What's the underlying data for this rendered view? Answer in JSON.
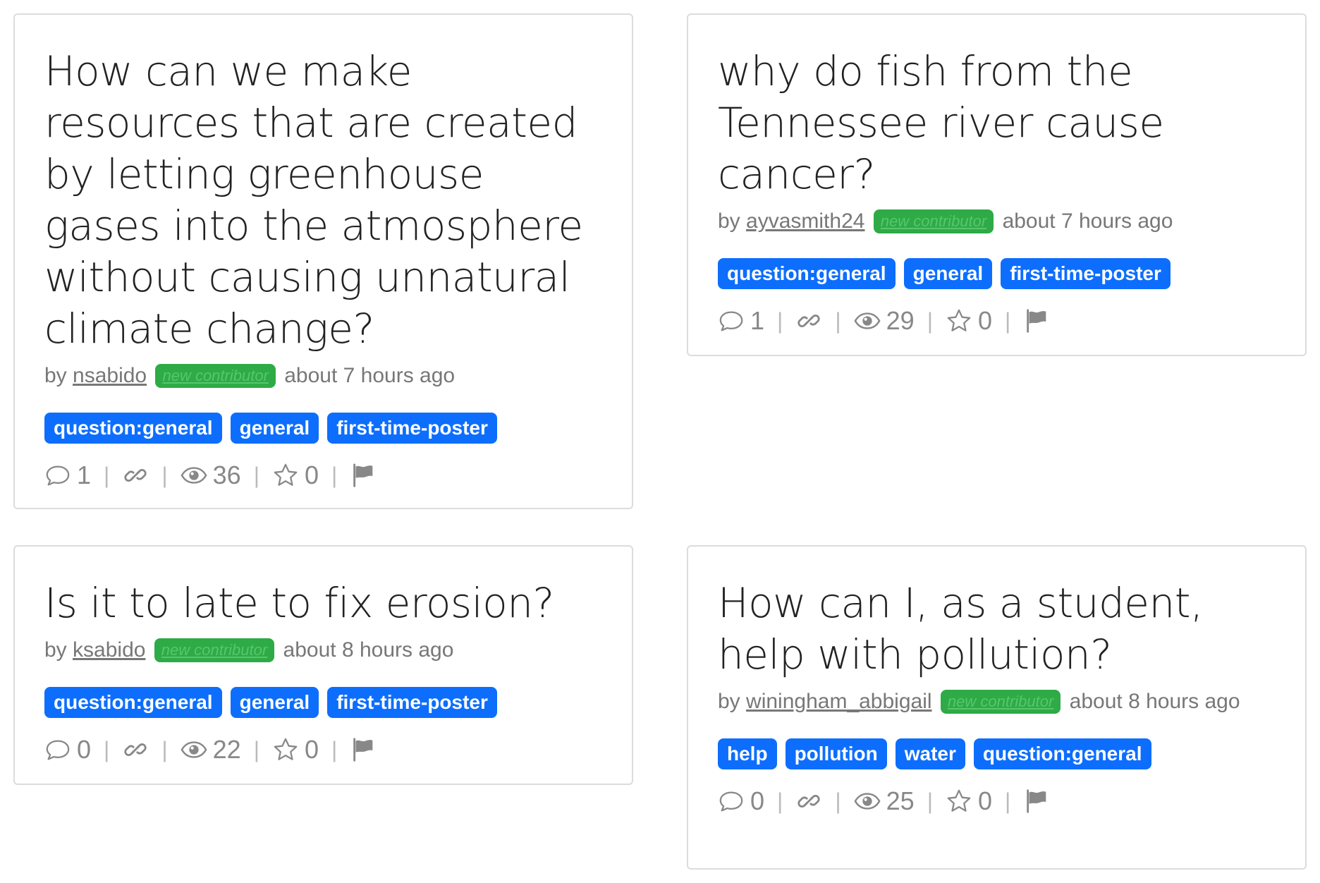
{
  "questions": [
    {
      "title": "How can we make resources that are created by letting greenhouse gases into the atmosphere without causing unnatural climate change?",
      "by": "by",
      "author": "nsabido",
      "badge": "new contributor",
      "time": "about 7 hours ago",
      "tags": [
        "question:general",
        "general",
        "first-time-poster"
      ],
      "comments": "1",
      "views": "36",
      "stars": "0"
    },
    {
      "title": "why do fish from the Tennessee river cause cancer?",
      "by": "by",
      "author": "ayvasmith24",
      "badge": "new contributor",
      "time": "about 7 hours ago",
      "tags": [
        "question:general",
        "general",
        "first-time-poster"
      ],
      "comments": "1",
      "views": "29",
      "stars": "0"
    },
    {
      "title": "Is it to late to fix erosion?",
      "by": "by",
      "author": "ksabido",
      "badge": "new contributor",
      "time": "about 8 hours ago",
      "tags": [
        "question:general",
        "general",
        "first-time-poster"
      ],
      "comments": "0",
      "views": "22",
      "stars": "0"
    },
    {
      "title": "How can I, as a student, help with pollution?",
      "by": "by",
      "author": "winingham_abbigail",
      "badge": "new contributor",
      "time": "about 8 hours ago",
      "tags": [
        "help",
        "pollution",
        "water",
        "question:general"
      ],
      "comments": "0",
      "views": "25",
      "stars": "0"
    }
  ],
  "icons": {
    "comment": "comment-icon",
    "link": "link-icon",
    "views": "eye-icon",
    "star": "star-icon",
    "flag": "flag-icon"
  },
  "colors": {
    "tag": "#0d6efd",
    "badge": "#2eab46",
    "muted": "#777777"
  }
}
